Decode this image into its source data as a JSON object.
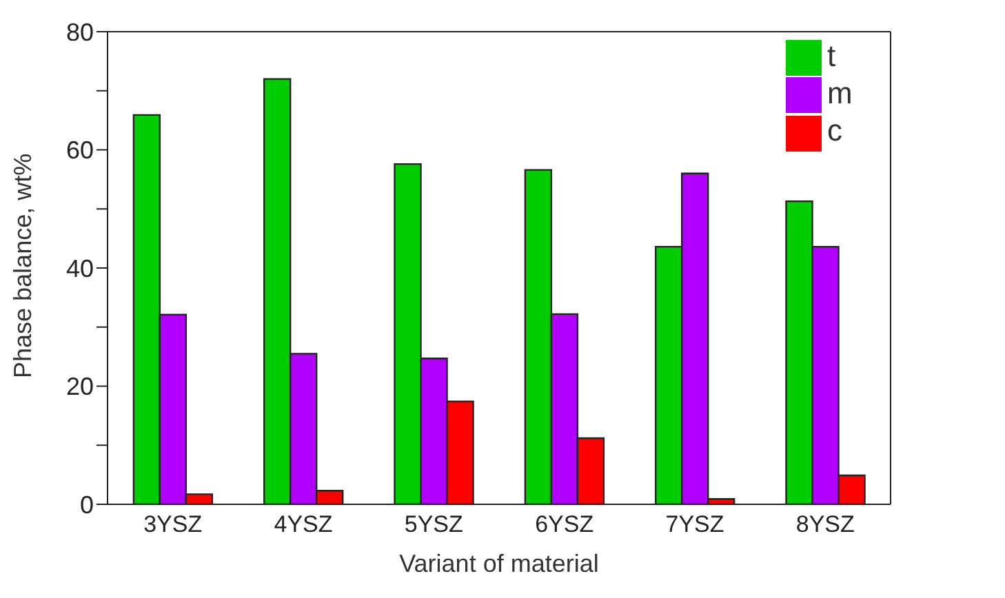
{
  "chart_data": {
    "type": "bar",
    "xlabel": "Variant of material",
    "ylabel": "Phase balance, wt%",
    "categories": [
      "3YSZ",
      "4YSZ",
      "5YSZ",
      "6YSZ",
      "7YSZ",
      "8YSZ"
    ],
    "series": [
      {
        "name": "t",
        "color": "#00cc00",
        "values": [
          65.9,
          72,
          57.6,
          56.6,
          43.6,
          51.3
        ]
      },
      {
        "name": "m",
        "color": "#b200ff",
        "values": [
          32.1,
          25.5,
          24.7,
          32.2,
          56,
          43.6
        ]
      },
      {
        "name": "c",
        "color": "#ff0000",
        "values": [
          1.7,
          2.3,
          17.4,
          11.2,
          0.9,
          4.9
        ]
      }
    ],
    "ylim": [
      0,
      80
    ],
    "yticks": [
      0,
      {
        "value": 10,
        "label": null
      },
      20,
      {
        "value": 30,
        "label": null
      },
      40,
      {
        "value": 50,
        "label": null
      },
      60,
      {
        "value": 70,
        "label": null
      },
      80
    ],
    "grid": false,
    "legend": "top right"
  }
}
